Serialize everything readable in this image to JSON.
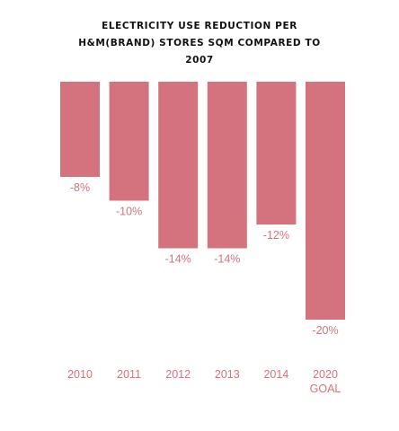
{
  "chart_data": {
    "type": "bar",
    "title_lines": [
      "ELECTRICITY USE REDUCTION PER",
      "H&M(BRAND) STORES SQM COMPARED TO",
      "2007"
    ],
    "categories": [
      [
        "2010"
      ],
      [
        "2011"
      ],
      [
        "2012"
      ],
      [
        "2013"
      ],
      [
        "2014"
      ],
      [
        "2020",
        "GOAL"
      ]
    ],
    "values": [
      -8,
      -10,
      -14,
      -14,
      -12,
      -20
    ],
    "value_labels": [
      "-8%",
      "-10%",
      "-14%",
      "-14%",
      "-12%",
      "-20%"
    ],
    "ylim": [
      -20,
      0
    ],
    "grid": false,
    "legend": "none",
    "colors": {
      "bar": "#d4727d",
      "label": "#d4727d",
      "title": "#111111"
    }
  }
}
